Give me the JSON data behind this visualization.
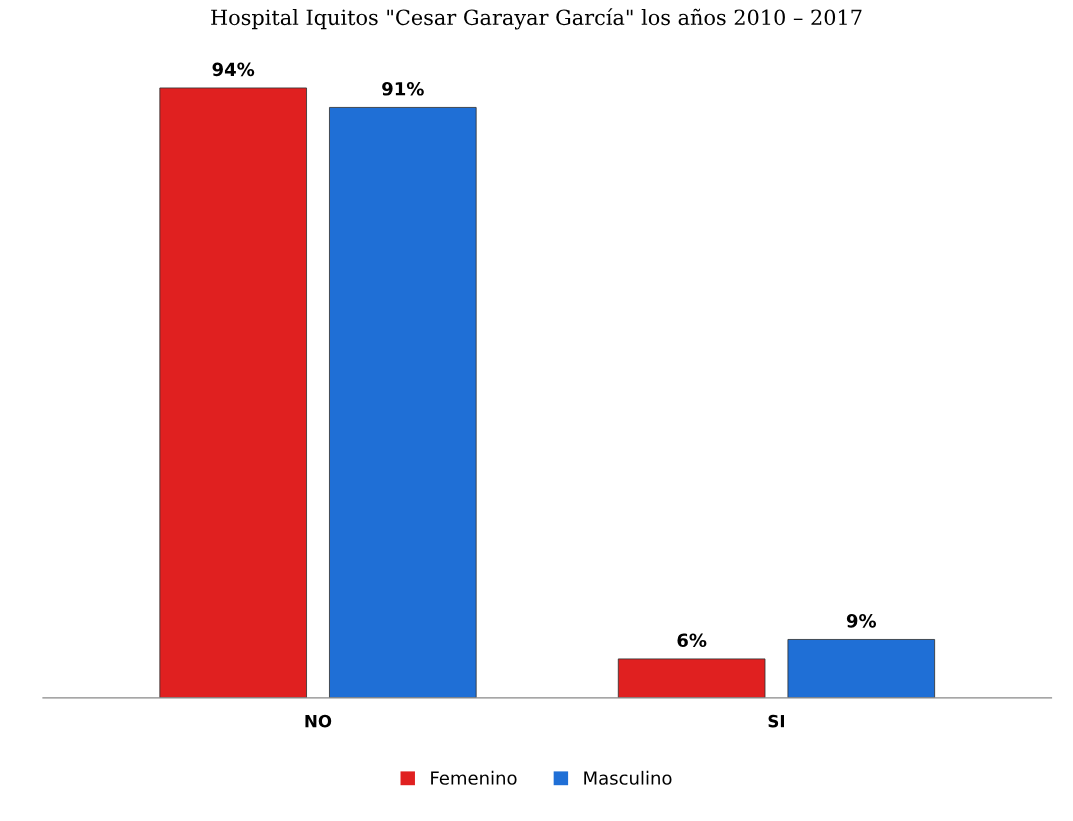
{
  "chart_data": {
    "type": "bar",
    "title": "Hospital Iquitos \"Cesar Garayar García\" los años 2010 – 2017",
    "categories": [
      "NO",
      "SI"
    ],
    "series": [
      {
        "name": "Femenino",
        "color": "#e02020",
        "values": [
          94,
          6
        ],
        "value_labels": [
          "94%",
          "6%"
        ]
      },
      {
        "name": "Masculino",
        "color": "#1f6fd6",
        "values": [
          91,
          9
        ],
        "value_labels": [
          "91%",
          "9%"
        ]
      }
    ],
    "legend": "bottom",
    "grid": false
  }
}
